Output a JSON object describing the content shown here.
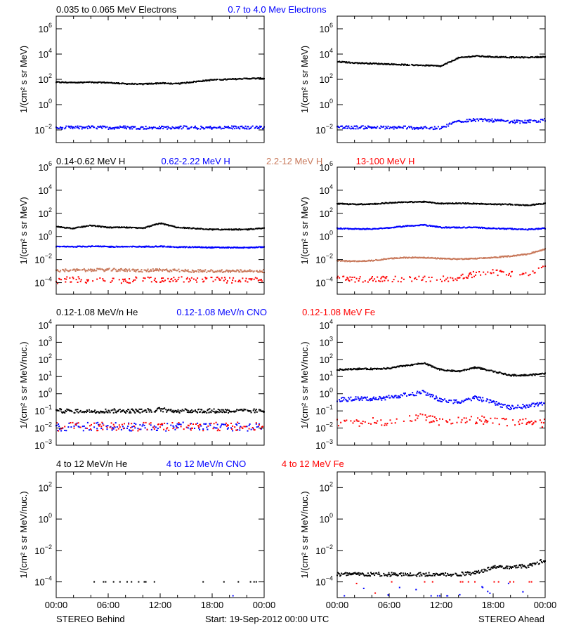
{
  "chart_data": [
    {
      "type": "scatter",
      "row_titles": [
        {
          "text": "0.035 to 0.065 MeV Electrons",
          "color": "#000000"
        },
        {
          "text": "0.7 to 4.0 Mev Electrons",
          "color": "#0000ff"
        }
      ],
      "panels": [
        {
          "side": "STEREO Behind",
          "ylabel": "1/(cm² s sr MeV)",
          "yscale": "log",
          "ylim": [
            0.001,
            10000000.0
          ],
          "yticks": [
            0.01,
            1.0,
            100.0,
            10000.0,
            1000000.0
          ],
          "series": [
            {
              "name": "0.035 to 0.065 MeV Electrons",
              "color": "#000000",
              "style": "line",
              "values": [
                60,
                55,
                60,
                55,
                45,
                42,
                50,
                45,
                65,
                90,
                100,
                115,
                120
              ]
            },
            {
              "name": "0.7 to 4.0 Mev Electrons",
              "color": "#0000ff",
              "style": "noisy",
              "values": [
                0.015,
                0.015,
                0.016,
                0.015,
                0.016,
                0.015,
                0.015,
                0.016,
                0.015,
                0.015,
                0.016,
                0.015,
                0.016
              ]
            }
          ]
        },
        {
          "side": "STEREO Ahead",
          "ylabel": "1/(cm² s sr MeV)",
          "yscale": "log",
          "ylim": [
            0.001,
            10000000.0
          ],
          "yticks": [
            0.01,
            1.0,
            100.0,
            10000.0,
            1000000.0
          ],
          "series": [
            {
              "name": "0.035 to 0.065 MeV Electrons",
              "color": "#000000",
              "style": "line",
              "values": [
                2500,
                2000,
                1800,
                1600,
                1400,
                1300,
                1100,
                5000,
                7000,
                6000,
                5500,
                5500,
                6000
              ]
            },
            {
              "name": "0.7 to 4.0 Mev Electrons",
              "color": "#0000ff",
              "style": "noisy",
              "values": [
                0.015,
                0.016,
                0.016,
                0.015,
                0.016,
                0.014,
                0.015,
                0.05,
                0.06,
                0.055,
                0.045,
                0.045,
                0.06
              ]
            }
          ]
        }
      ]
    },
    {
      "type": "scatter",
      "row_titles": [
        {
          "text": "0.14-0.62 MeV H",
          "color": "#000000"
        },
        {
          "text": "0.62-2.22 MeV H",
          "color": "#0000ff"
        },
        {
          "text": "2.2-12 MeV H",
          "color": "#c8785a"
        },
        {
          "text": "13-100 MeV H",
          "color": "#ff0000"
        }
      ],
      "panels": [
        {
          "side": "STEREO Behind",
          "ylabel": "1/(cm² s sr MeV)",
          "yscale": "log",
          "ylim": [
            1e-05,
            1000000.0
          ],
          "yticks": [
            0.0001,
            0.01,
            1.0,
            100.0,
            10000.0,
            1000000.0
          ],
          "series": [
            {
              "name": "0.14-0.62 MeV H",
              "color": "#000000",
              "style": "line",
              "values": [
                7,
                5,
                9,
                6,
                6,
                5,
                14,
                6,
                5,
                4,
                4,
                4,
                5
              ]
            },
            {
              "name": "0.62-2.22 MeV H",
              "color": "#0000ff",
              "style": "line",
              "values": [
                0.13,
                0.13,
                0.14,
                0.13,
                0.13,
                0.13,
                0.14,
                0.12,
                0.12,
                0.11,
                0.11,
                0.11,
                0.12
              ]
            },
            {
              "name": "2.2-12 MeV H",
              "color": "#c8785a",
              "style": "noisy",
              "values": [
                0.0011,
                0.0012,
                0.0012,
                0.0013,
                0.0012,
                0.0011,
                0.0012,
                0.0011,
                0.001,
                0.001,
                0.001,
                0.001,
                0.001
              ]
            },
            {
              "name": "13-100 MeV H",
              "color": "#ff0000",
              "style": "sparse",
              "values": [
                0.00015,
                0.0002,
                0.00015,
                0.0002,
                0.00015,
                0.0002,
                0.00015,
                0.0002,
                0.00015,
                0.0002,
                0.00015,
                0.0002,
                0.00025
              ]
            }
          ]
        },
        {
          "side": "STEREO Ahead",
          "ylabel": "1/(cm² s sr MeV)",
          "yscale": "log",
          "ylim": [
            1e-05,
            1000000.0
          ],
          "yticks": [
            0.0001,
            0.01,
            1.0,
            100.0,
            10000.0,
            1000000.0
          ],
          "series": [
            {
              "name": "0.14-0.62 MeV H",
              "color": "#000000",
              "style": "line",
              "values": [
                700,
                600,
                650,
                800,
                950,
                1000,
                700,
                750,
                700,
                600,
                600,
                500,
                700
              ]
            },
            {
              "name": "0.62-2.22 MeV H",
              "color": "#0000ff",
              "style": "line",
              "values": [
                5,
                4.5,
                4.5,
                5.5,
                8,
                10,
                6,
                6,
                6,
                5,
                4.5,
                4,
                5
              ]
            },
            {
              "name": "2.2-12 MeV H",
              "color": "#c8785a",
              "style": "line",
              "values": [
                0.008,
                0.007,
                0.008,
                0.012,
                0.015,
                0.015,
                0.012,
                0.011,
                0.012,
                0.015,
                0.02,
                0.03,
                0.08
              ]
            },
            {
              "name": "13-100 MeV H",
              "color": "#ff0000",
              "style": "sparse",
              "values": [
                0.0002,
                0.0002,
                0.0002,
                0.0002,
                0.0002,
                0.0002,
                0.0002,
                0.00025,
                0.0006,
                0.0008,
                0.0006,
                0.0006,
                0.002
              ]
            }
          ]
        }
      ]
    },
    {
      "type": "scatter",
      "row_titles": [
        {
          "text": "0.12-1.08 MeV/n He",
          "color": "#000000"
        },
        {
          "text": "0.12-1.08 MeV/n CNO",
          "color": "#0000ff"
        },
        {
          "text": "0.12-1.08 MeV Fe",
          "color": "#ff0000"
        }
      ],
      "panels": [
        {
          "side": "STEREO Behind",
          "ylabel": "1/(cm² s sr MeV/nuc.)",
          "yscale": "log",
          "ylim": [
            0.001,
            10000.0
          ],
          "yticks": [
            0.001,
            0.01,
            0.1,
            1.0,
            10.0,
            100.0,
            1000.0,
            10000.0
          ],
          "series": [
            {
              "name": "0.12-1.08 MeV/n He",
              "color": "#000000",
              "style": "noisy",
              "values": [
                0.1,
                0.1,
                0.1,
                0.1,
                0.1,
                0.1,
                0.12,
                0.1,
                0.1,
                0.1,
                0.1,
                0.1,
                0.1
              ]
            },
            {
              "name": "0.12-1.08 MeV/n CNO",
              "color": "#0000ff",
              "style": "sparse",
              "values": [
                0.012,
                0.012,
                0.012,
                0.012,
                0.012,
                0.012,
                0.012,
                0.012,
                0.012,
                0.012,
                0.012,
                0.012,
                0.012
              ]
            },
            {
              "name": "0.12-1.08 MeV Fe",
              "color": "#ff0000",
              "style": "sparse",
              "values": [
                0.012,
                0.012,
                0.012,
                0.012,
                0.012,
                0.012,
                0.012,
                0.012,
                0.012,
                0.012,
                0.012,
                0.012,
                0.012
              ]
            }
          ]
        },
        {
          "side": "STEREO Ahead",
          "ylabel": "1/(cm² s sr MeV/nuc.)",
          "yscale": "log",
          "ylim": [
            0.001,
            10000.0
          ],
          "yticks": [
            0.001,
            0.01,
            0.1,
            1.0,
            10.0,
            100.0,
            1000.0,
            10000.0
          ],
          "series": [
            {
              "name": "0.12-1.08 MeV/n He",
              "color": "#000000",
              "style": "line",
              "values": [
                25,
                28,
                28,
                30,
                45,
                60,
                25,
                20,
                35,
                20,
                12,
                12,
                15
              ]
            },
            {
              "name": "0.12-1.08 MeV/n CNO",
              "color": "#0000ff",
              "style": "noisy",
              "values": [
                0.45,
                0.5,
                0.5,
                0.6,
                0.9,
                1.2,
                0.4,
                0.35,
                0.6,
                0.3,
                0.15,
                0.2,
                0.25
              ]
            },
            {
              "name": "0.12-1.08 MeV Fe",
              "color": "#ff0000",
              "style": "sparse",
              "values": [
                0.02,
                0.02,
                0.025,
                0.025,
                0.04,
                0.04,
                0.025,
                0.03,
                0.03,
                0.025,
                0.02,
                0.02,
                0.02
              ]
            }
          ]
        }
      ]
    },
    {
      "type": "scatter",
      "row_titles": [
        {
          "text": "4 to 12 MeV/n He",
          "color": "#000000"
        },
        {
          "text": "4 to 12 MeV/n CNO",
          "color": "#0000ff"
        },
        {
          "text": "4 to 12 MeV Fe",
          "color": "#ff0000"
        }
      ],
      "panels": [
        {
          "side": "STEREO Behind",
          "ylabel": "1/(cm² s sr MeV/nuc.)",
          "yscale": "log",
          "ylim": [
            1e-05,
            1000.0
          ],
          "yticks": [
            0.0001,
            0.01,
            1.0,
            100.0
          ],
          "series": [
            {
              "name": "4 to 12 MeV/n He",
              "color": "#000000",
              "style": "very-sparse",
              "values": [
                0.0001,
                0.0001,
                0.0001,
                0.0001,
                0.0001,
                0.0001,
                0.0001,
                0.0001,
                0.0001,
                0.0001,
                0.0001,
                0.0001,
                0.0001
              ]
            },
            {
              "name": "4 to 12 MeV/n CNO",
              "color": "#0000ff",
              "style": "single",
              "values": [
                null,
                null,
                null,
                null,
                null,
                null,
                null,
                null,
                null,
                null,
                1.3e-05,
                null,
                null
              ]
            }
          ]
        },
        {
          "side": "STEREO Ahead",
          "ylabel": "1/(cm² s sr MeV/nuc.)",
          "yscale": "log",
          "ylim": [
            1e-05,
            1000.0
          ],
          "yticks": [
            0.0001,
            0.01,
            1.0,
            100.0
          ],
          "series": [
            {
              "name": "4 to 12 MeV/n He",
              "color": "#000000",
              "style": "noisy",
              "values": [
                0.0003,
                0.0003,
                0.0003,
                0.0003,
                0.0003,
                0.0003,
                0.0003,
                0.0003,
                0.0004,
                0.0008,
                0.0009,
                0.001,
                0.0025
              ]
            },
            {
              "name": "4 to 12 MeV/n CNO",
              "color": "#0000ff",
              "style": "very-sparse",
              "values": [
                1.3e-05,
                1.3e-05,
                0.0001,
                1.3e-05,
                0.0001,
                1.3e-05,
                1.3e-05,
                1.3e-05,
                0.0001,
                1.3e-05,
                0.0001,
                1.3e-05,
                0.0001
              ]
            },
            {
              "name": "4 to 12 MeV Fe",
              "color": "#ff0000",
              "style": "very-sparse",
              "values": [
                0.0001,
                0.0001,
                1.3e-05,
                0.0001,
                0.0001,
                0.0001,
                0.0001,
                0.0001,
                0.0001,
                0.0001,
                0.0001,
                0.0001,
                0.0001
              ]
            }
          ]
        }
      ]
    }
  ],
  "x_hours": [
    0,
    2,
    4,
    6,
    8,
    10,
    12,
    14,
    16,
    18,
    20,
    22,
    24
  ],
  "x_tick_labels": [
    "00:00",
    "06:00",
    "12:00",
    "18:00",
    "00:00"
  ],
  "footer": {
    "left": "STEREO Behind",
    "center": "Start: 19-Sep-2012 00:00 UTC",
    "right": "STEREO Ahead"
  }
}
